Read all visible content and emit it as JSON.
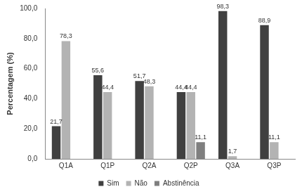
{
  "chart_data": {
    "type": "bar",
    "y_label": "Percentagem (%)",
    "categories": [
      "Q1A",
      "Q1P",
      "Q2A",
      "Q2P",
      "Q3A",
      "Q3P"
    ],
    "series": [
      {
        "name": "Sim",
        "color": "#404040",
        "values": [
          21.7,
          55.6,
          51.7,
          44.4,
          98.3,
          88.9
        ],
        "value_labels": [
          "21,7",
          "55,6",
          "51,7",
          "44,4",
          "98,3",
          "88,9"
        ]
      },
      {
        "name": "Não",
        "color": "#b3b3b3",
        "values": [
          78.3,
          44.4,
          48.3,
          44.4,
          1.7,
          11.1
        ],
        "value_labels": [
          "78,3",
          "44,4",
          "48,3",
          "44,4",
          "1,7",
          "11,1"
        ]
      },
      {
        "name": "Abstinência",
        "color": "#7f7f7f",
        "values": [
          null,
          null,
          null,
          11.1,
          null,
          null
        ],
        "value_labels": [
          null,
          null,
          null,
          "11,1",
          null,
          null
        ]
      }
    ],
    "ylim": [
      0,
      100
    ],
    "yticks": [
      {
        "value": 0,
        "label": "0,0"
      },
      {
        "value": 20,
        "label": "20,0"
      },
      {
        "value": 40,
        "label": "40,0"
      },
      {
        "value": 60,
        "label": "60,0"
      },
      {
        "value": 80,
        "label": "80,0"
      },
      {
        "value": 100,
        "label": "100,0"
      }
    ],
    "grid": false,
    "legend": "bottom",
    "data_labels": true
  }
}
